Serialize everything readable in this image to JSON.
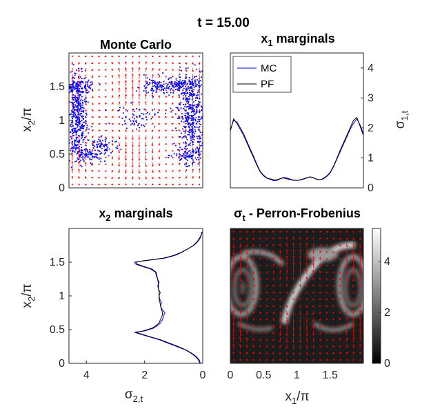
{
  "figure": {
    "title": "t = 15.00"
  },
  "colors": {
    "mc": "#0000ff",
    "pf": "#000000",
    "vector_field": "#ff0000",
    "axis": "#262626"
  },
  "chart_data": [
    {
      "id": "monte-carlo",
      "type": "scatter",
      "title": "Monte Carlo",
      "xlabel": "",
      "ylabel": "x2/π",
      "ylabel_parts": {
        "base": "x",
        "sub": "2",
        "tail": "/π"
      },
      "xlim": [
        0,
        2
      ],
      "ylim": [
        0,
        2
      ],
      "yticks": [
        0,
        0.5,
        1,
        1.5
      ],
      "ytick_labels": [
        "0",
        "0.5",
        "1",
        "1.5"
      ],
      "series": [
        {
          "name": "samples",
          "color": "#0000ff",
          "clusters": [
            {
              "xc": 0.12,
              "yc": 1.0,
              "sx": 0.08,
              "sy": 0.33,
              "n": 420
            },
            {
              "xc": 0.15,
              "yc": 1.5,
              "sx": 0.13,
              "sy": 0.05,
              "n": 110
            },
            {
              "xc": 0.25,
              "yc": 0.48,
              "sx": 0.12,
              "sy": 0.05,
              "n": 70
            },
            {
              "xc": 0.5,
              "yc": 0.62,
              "sx": 0.13,
              "sy": 0.08,
              "n": 80
            },
            {
              "xc": 1.82,
              "yc": 1.05,
              "sx": 0.1,
              "sy": 0.33,
              "n": 430
            },
            {
              "xc": 1.7,
              "yc": 1.52,
              "sx": 0.16,
              "sy": 0.05,
              "n": 120
            },
            {
              "xc": 1.8,
              "yc": 0.48,
              "sx": 0.12,
              "sy": 0.05,
              "n": 60
            },
            {
              "xc": 1.3,
              "yc": 1.5,
              "sx": 0.12,
              "sy": 0.07,
              "n": 90
            },
            {
              "xc": 1.0,
              "yc": 1.05,
              "sx": 0.15,
              "sy": 0.08,
              "n": 60
            }
          ]
        }
      ],
      "vector_field": {
        "color": "#ff0000",
        "nx": 20,
        "ny": 20
      }
    },
    {
      "id": "x1-marginals",
      "type": "line",
      "title": "x1 marginals",
      "title_parts": {
        "base": "x",
        "sub": "1",
        "tail": " marginals"
      },
      "xlabel": "",
      "ylabel": "σ1,t",
      "ylabel_parts": {
        "base": "σ",
        "sub": "1,t"
      },
      "xlim": [
        0,
        2
      ],
      "ylim": [
        0,
        4.5
      ],
      "yticks": [
        0,
        1,
        2,
        3,
        4
      ],
      "ytick_labels": [
        "0",
        "1",
        "2",
        "3",
        "4"
      ],
      "legend": {
        "position": "top-left",
        "entries": [
          "MC",
          "PF"
        ]
      },
      "series": [
        {
          "name": "MC",
          "color": "#0000ff",
          "x": [
            0,
            0.05,
            0.1,
            0.15,
            0.2,
            0.25,
            0.3,
            0.35,
            0.4,
            0.45,
            0.5,
            0.55,
            0.6,
            0.65,
            0.7,
            0.75,
            0.8,
            0.85,
            0.9,
            0.95,
            1.0,
            1.05,
            1.1,
            1.15,
            1.2,
            1.25,
            1.3,
            1.35,
            1.4,
            1.45,
            1.5,
            1.55,
            1.6,
            1.65,
            1.7,
            1.75,
            1.8,
            1.85,
            1.9,
            1.95,
            2.0
          ],
          "y": [
            1.95,
            2.25,
            2.2,
            2.0,
            1.8,
            1.55,
            1.3,
            1.05,
            0.78,
            0.55,
            0.42,
            0.33,
            0.28,
            0.24,
            0.25,
            0.3,
            0.35,
            0.33,
            0.29,
            0.26,
            0.25,
            0.26,
            0.29,
            0.33,
            0.36,
            0.33,
            0.28,
            0.27,
            0.3,
            0.38,
            0.5,
            0.7,
            0.95,
            1.2,
            1.45,
            1.7,
            1.95,
            2.15,
            2.3,
            2.1,
            1.8
          ]
        },
        {
          "name": "PF",
          "color": "#000000",
          "x": [
            0,
            0.05,
            0.1,
            0.15,
            0.2,
            0.25,
            0.3,
            0.35,
            0.4,
            0.45,
            0.5,
            0.55,
            0.6,
            0.65,
            0.7,
            0.75,
            0.8,
            0.85,
            0.9,
            0.95,
            1.0,
            1.05,
            1.1,
            1.15,
            1.2,
            1.25,
            1.3,
            1.35,
            1.4,
            1.45,
            1.5,
            1.55,
            1.6,
            1.65,
            1.7,
            1.75,
            1.8,
            1.85,
            1.9,
            1.95,
            2.0
          ],
          "y": [
            1.9,
            2.3,
            2.15,
            1.95,
            1.75,
            1.5,
            1.25,
            1.0,
            0.75,
            0.53,
            0.4,
            0.32,
            0.3,
            0.27,
            0.27,
            0.31,
            0.33,
            0.3,
            0.27,
            0.25,
            0.25,
            0.27,
            0.3,
            0.34,
            0.37,
            0.34,
            0.29,
            0.27,
            0.32,
            0.4,
            0.52,
            0.72,
            0.98,
            1.25,
            1.5,
            1.75,
            2.0,
            2.25,
            2.35,
            2.05,
            1.75
          ]
        }
      ]
    },
    {
      "id": "x2-marginals",
      "type": "line",
      "title": "x2 marginals",
      "title_parts": {
        "base": "x",
        "sub": "2",
        "tail": " marginals"
      },
      "xlabel": "σ2,t",
      "xlabel_parts": {
        "base": "σ",
        "sub": "2,t"
      },
      "ylabel": "x2/π",
      "ylabel_parts": {
        "base": "x",
        "sub": "2",
        "tail": "/π"
      },
      "xlim": [
        4.6,
        0
      ],
      "ylim": [
        0,
        2
      ],
      "xticks": [
        4,
        2,
        0
      ],
      "xtick_labels": [
        "4",
        "2",
        "0"
      ],
      "yticks": [
        0,
        0.5,
        1,
        1.5
      ],
      "ytick_labels": [
        "0",
        "0.5",
        "1",
        "1.5"
      ],
      "series": [
        {
          "name": "MC",
          "color": "#0000ff",
          "y": [
            0,
            0.05,
            0.1,
            0.15,
            0.2,
            0.25,
            0.3,
            0.35,
            0.4,
            0.44,
            0.46,
            0.48,
            0.52,
            0.56,
            0.6,
            0.65,
            0.7,
            0.75,
            0.8,
            0.85,
            0.9,
            0.95,
            1.0,
            1.05,
            1.1,
            1.15,
            1.2,
            1.25,
            1.3,
            1.35,
            1.4,
            1.44,
            1.47,
            1.5,
            1.52,
            1.56,
            1.6,
            1.65,
            1.7,
            1.75,
            1.8,
            1.85,
            1.9,
            1.95
          ],
          "x": [
            0.1,
            0.15,
            0.25,
            0.4,
            0.6,
            0.9,
            1.2,
            1.5,
            1.9,
            2.2,
            2.35,
            2.0,
            1.7,
            1.55,
            1.45,
            1.38,
            1.35,
            1.3,
            1.4,
            1.45,
            1.42,
            1.48,
            1.5,
            1.46,
            1.52,
            1.55,
            1.5,
            1.55,
            1.6,
            1.62,
            1.8,
            2.1,
            2.3,
            2.35,
            2.0,
            1.3,
            0.95,
            0.7,
            0.5,
            0.3,
            0.18,
            0.1,
            0.05,
            0.02
          ]
        },
        {
          "name": "PF",
          "color": "#000000",
          "y": [
            0,
            0.05,
            0.1,
            0.15,
            0.2,
            0.25,
            0.3,
            0.35,
            0.4,
            0.44,
            0.46,
            0.48,
            0.52,
            0.56,
            0.6,
            0.65,
            0.7,
            0.75,
            0.8,
            0.85,
            0.9,
            0.95,
            1.0,
            1.05,
            1.1,
            1.15,
            1.2,
            1.25,
            1.3,
            1.35,
            1.4,
            1.44,
            1.47,
            1.5,
            1.52,
            1.56,
            1.6,
            1.65,
            1.7,
            1.75,
            1.8,
            1.85,
            1.9,
            1.95
          ],
          "x": [
            0.08,
            0.12,
            0.22,
            0.38,
            0.58,
            0.85,
            1.15,
            1.45,
            1.85,
            2.15,
            2.3,
            2.05,
            1.75,
            1.6,
            1.5,
            1.45,
            1.4,
            1.38,
            1.42,
            1.45,
            1.47,
            1.5,
            1.5,
            1.5,
            1.52,
            1.52,
            1.53,
            1.55,
            1.58,
            1.6,
            1.75,
            2.05,
            2.25,
            2.3,
            2.05,
            1.35,
            1.0,
            0.72,
            0.5,
            0.32,
            0.2,
            0.12,
            0.06,
            0.03
          ]
        }
      ]
    },
    {
      "id": "perron-frobenius",
      "type": "heatmap",
      "title": "σt - Perron-Frobenius",
      "title_parts": {
        "base": "σ",
        "sub": "t",
        "tail": " - Perron-Frobenius"
      },
      "xlabel": "x1/π",
      "xlabel_parts": {
        "base": "x",
        "sub": "1",
        "tail": "/π"
      },
      "ylabel": "",
      "xlim": [
        0,
        2
      ],
      "ylim": [
        0,
        2
      ],
      "xticks": [
        0,
        0.5,
        1,
        1.5
      ],
      "xtick_labels": [
        "0",
        "0.5",
        "1",
        "1.5"
      ],
      "colorbar": {
        "range": [
          0,
          5.3
        ],
        "ticks": [
          0,
          2,
          4
        ],
        "tick_labels": [
          "0",
          "2",
          "4"
        ],
        "colormap": "gray"
      },
      "vector_field": {
        "color": "#ff0000",
        "nx": 20,
        "ny": 20
      }
    }
  ]
}
